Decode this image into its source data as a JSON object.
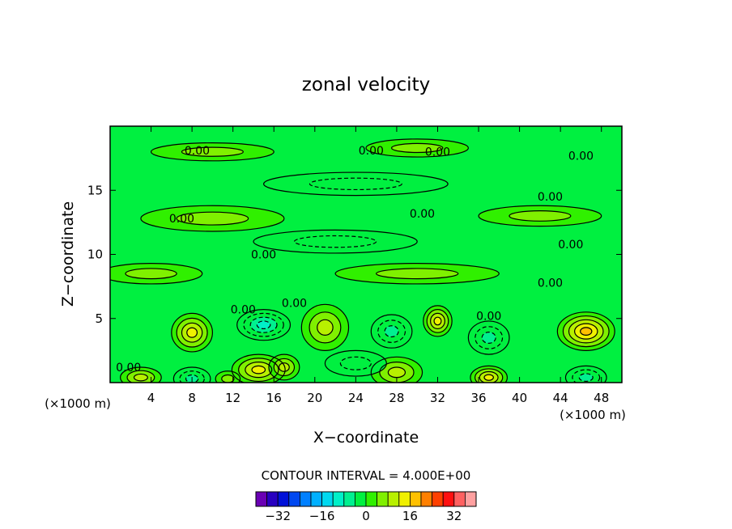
{
  "chart_data": {
    "type": "heatmap",
    "title": "zonal velocity",
    "xlabel": "X−coordinate",
    "ylabel": "Z−coordinate",
    "x_unit": "(×1000 m)",
    "y_unit": "(×1000 m)",
    "xlim": [
      0,
      50
    ],
    "ylim": [
      0,
      20
    ],
    "x_ticks": [
      4,
      8,
      12,
      16,
      20,
      24,
      28,
      32,
      36,
      40,
      44,
      48
    ],
    "x_tick_labels": [
      "4",
      "8",
      "12",
      "16",
      "20",
      "24",
      "28",
      "32",
      "36",
      "40",
      "44",
      "48"
    ],
    "y_ticks": [
      5,
      10,
      15
    ],
    "y_tick_labels": [
      "5",
      "10",
      "15"
    ],
    "contour_interval_text": "CONTOUR INTERVAL = 4.000E+00",
    "contour_labels": [
      {
        "text": "0.00",
        "x": 8.5,
        "z": 18.1
      },
      {
        "text": "0.00",
        "x": 25.5,
        "z": 18.1
      },
      {
        "text": "0.00",
        "x": 32,
        "z": 18.0
      },
      {
        "text": "0.00",
        "x": 46,
        "z": 17.7
      },
      {
        "text": "0.00",
        "x": 43,
        "z": 14.5
      },
      {
        "text": "0.00",
        "x": 7,
        "z": 12.8
      },
      {
        "text": "0.00",
        "x": 30.5,
        "z": 13.2
      },
      {
        "text": "0.00",
        "x": 45,
        "z": 10.8
      },
      {
        "text": "0.00",
        "x": 15,
        "z": 10.0
      },
      {
        "text": "0.00",
        "x": 43,
        "z": 7.8
      },
      {
        "text": "0.00",
        "x": 13,
        "z": 5.7
      },
      {
        "text": "0.00",
        "x": 18,
        "z": 6.2
      },
      {
        "text": "0.00",
        "x": 37,
        "z": 5.2
      },
      {
        "text": "0.00",
        "x": 1.8,
        "z": 1.2
      }
    ],
    "features": [
      {
        "x": 8,
        "z": 3.9,
        "sx": 2.0,
        "sz": 1.5,
        "a": 14
      },
      {
        "x": 15,
        "z": 4.5,
        "sx": 2.6,
        "sz": 1.2,
        "a": -14
      },
      {
        "x": 21,
        "z": 4.3,
        "sx": 2.3,
        "sz": 1.8,
        "a": 8
      },
      {
        "x": 27.5,
        "z": 4.0,
        "sx": 2.0,
        "sz": 1.3,
        "a": -8
      },
      {
        "x": 32,
        "z": 4.8,
        "sx": 1.4,
        "sz": 1.2,
        "a": 12
      },
      {
        "x": 37,
        "z": 3.5,
        "sx": 2.0,
        "sz": 1.3,
        "a": -11
      },
      {
        "x": 46.5,
        "z": 4.0,
        "sx": 2.8,
        "sz": 1.5,
        "a": 17
      },
      {
        "x": 14.5,
        "z": 1.0,
        "sx": 2.6,
        "sz": 1.2,
        "a": 13
      },
      {
        "x": 17,
        "z": 1.2,
        "sx": 1.5,
        "sz": 1.0,
        "a": 9
      },
      {
        "x": 8,
        "z": 0.3,
        "sx": 1.8,
        "sz": 0.9,
        "a": -10
      },
      {
        "x": 3,
        "z": 0.4,
        "sx": 2.0,
        "sz": 0.8,
        "a": 9
      },
      {
        "x": 11.5,
        "z": 0.3,
        "sx": 1.2,
        "sz": 0.6,
        "a": 6
      },
      {
        "x": 28,
        "z": 0.8,
        "sx": 2.5,
        "sz": 1.2,
        "a": 10
      },
      {
        "x": 37,
        "z": 0.4,
        "sx": 1.8,
        "sz": 0.9,
        "a": 12
      },
      {
        "x": 46.5,
        "z": 0.4,
        "sx": 2.0,
        "sz": 0.9,
        "a": -10
      },
      {
        "x": 24,
        "z": 1.5,
        "sx": 3.0,
        "sz": 1.0,
        "a": -5
      },
      {
        "x": 10,
        "z": 18.0,
        "sx": 6.0,
        "sz": 0.7,
        "a": 3
      },
      {
        "x": 30,
        "z": 18.3,
        "sx": 5.0,
        "sz": 0.7,
        "a": 3
      },
      {
        "x": 24,
        "z": 15.5,
        "sx": 9.0,
        "sz": 0.9,
        "a": -3
      },
      {
        "x": 10,
        "z": 12.8,
        "sx": 7.0,
        "sz": 1.0,
        "a": 4
      },
      {
        "x": 42,
        "z": 13.0,
        "sx": 6.0,
        "sz": 0.8,
        "a": 3
      },
      {
        "x": 22,
        "z": 11.0,
        "sx": 8.0,
        "sz": 0.9,
        "a": -3
      },
      {
        "x": 4,
        "z": 8.5,
        "sx": 5.0,
        "sz": 0.8,
        "a": 3
      },
      {
        "x": 30,
        "z": 8.5,
        "sx": 8.0,
        "sz": 0.8,
        "a": 2
      }
    ],
    "colorbar": {
      "levels": [
        -36,
        -32,
        -28,
        -24,
        -20,
        -16,
        -12,
        -8,
        -4,
        0,
        4,
        8,
        12,
        16,
        20,
        24,
        28,
        32,
        36
      ],
      "colors": [
        "#6a00b4",
        "#2800c0",
        "#0010d8",
        "#0048f0",
        "#0080ff",
        "#00b0ff",
        "#00d8f0",
        "#00f0c8",
        "#00f090",
        "#00f040",
        "#30f000",
        "#80f000",
        "#b8f000",
        "#f0f000",
        "#ffc000",
        "#ff8000",
        "#ff4000",
        "#ff1010",
        "#ff6060",
        "#ffa0a0"
      ],
      "tick_values": [
        -32,
        -16,
        0,
        16,
        32
      ],
      "tick_labels": [
        "−32",
        "−16",
        "0",
        "16",
        "32"
      ]
    }
  }
}
